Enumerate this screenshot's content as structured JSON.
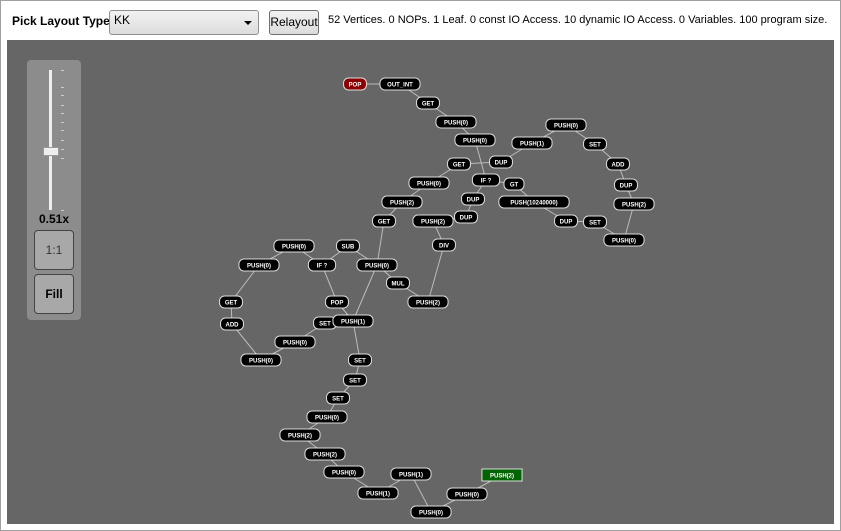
{
  "header": {
    "pick_label": "Pick Layout Type",
    "layout_value": "KK",
    "relayout_label": "Relayout",
    "status": "52 Vertices.  0 NOPs.  1 Leaf. 0 const IO Access. 10 dynamic IO Access. 0 Variables. 100 program size."
  },
  "zoom": {
    "value_label": "0.51x",
    "level": 0.51,
    "one_to_one_label": "1:1",
    "fill_label": "Fill"
  },
  "colors": {
    "canvas": "#666666",
    "node": "#000000",
    "start_node": "#8b0000",
    "end_node": "#006400"
  },
  "graph": {
    "nodes": [
      "POP",
      "OUT_INT",
      "GET",
      "PUSH(0)",
      "PUSH(0)",
      "GET",
      "DUP",
      "PUSH(1)",
      "PUSH(0)",
      "SET",
      "ADD",
      "DUP",
      "PUSH(2)",
      "PUSH(0)",
      "SET",
      "DUP",
      "PUSH(10240000)",
      "GT",
      "IF ?",
      "DUP",
      "DUP",
      "PUSH(2)",
      "DIV",
      "PUSH(2)",
      "MUL",
      "PUSH(0)",
      "SUB",
      "IF ?",
      "PUSH(0)",
      "PUSH(0)",
      "GET",
      "ADD",
      "PUSH(0)",
      "PUSH(0)",
      "SET",
      "PUSH(1)",
      "POP",
      "GET",
      "PUSH(2)",
      "PUSH(0)",
      "SET",
      "SET",
      "SET",
      "PUSH(0)",
      "PUSH(2)",
      "PUSH(2)",
      "PUSH(0)",
      "PUSH(1)",
      "PUSH(1)",
      "PUSH(0)",
      "PUSH(0)",
      "PUSH(2)"
    ]
  }
}
